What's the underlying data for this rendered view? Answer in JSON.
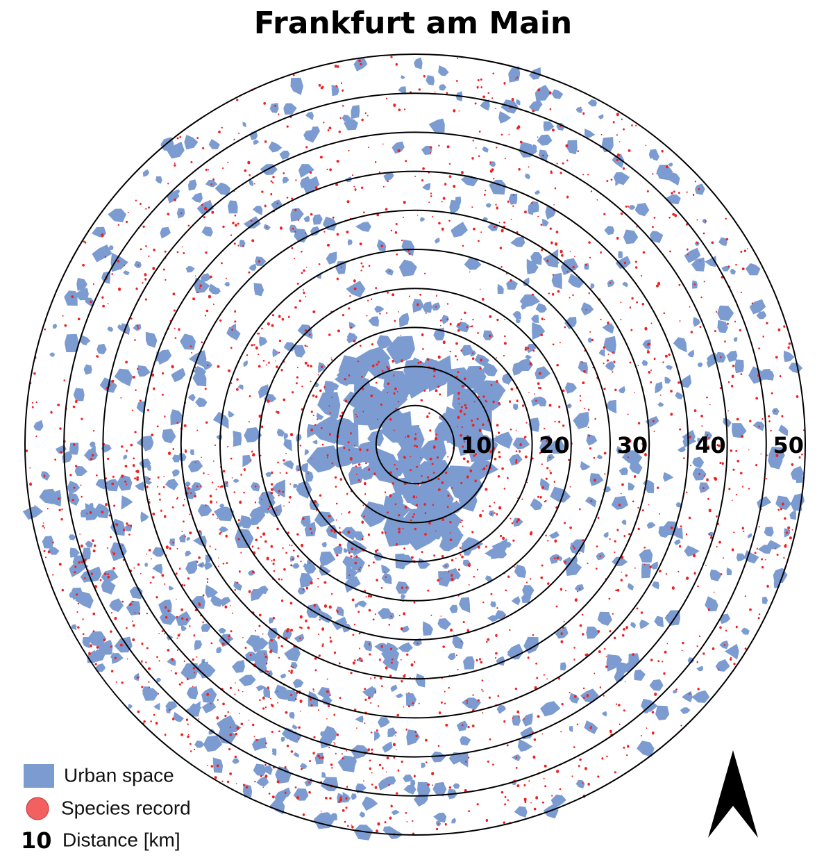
{
  "title": "Frankfurt am Main",
  "distance_labels": [
    10,
    20,
    30,
    40,
    50
  ],
  "legend": {
    "urban": "Urban space",
    "species": "Species record",
    "distance_example": 10,
    "distance": "Distance [km]"
  }
}
